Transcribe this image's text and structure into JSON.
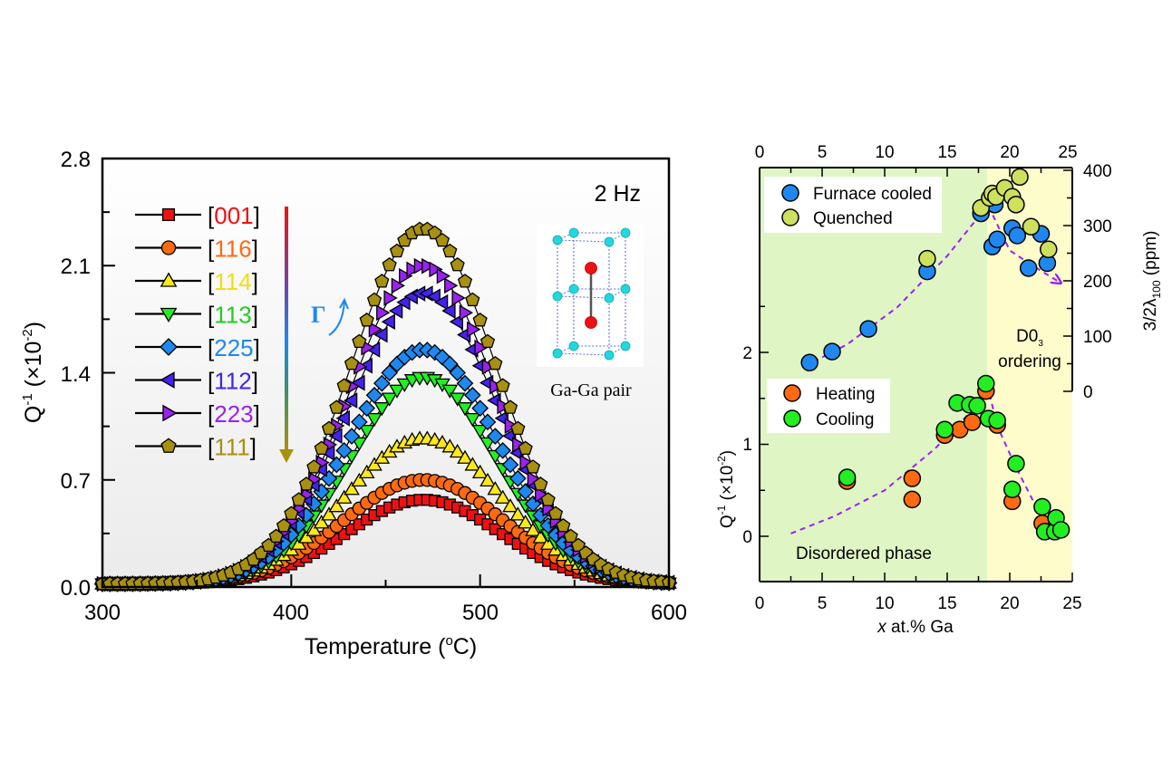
{
  "chart_data": [
    {
      "type": "scatter",
      "title": "",
      "annotation_frequency": "2 Hz",
      "annotation_gamma": "Γ",
      "inset_caption": "Ga-Ga pair",
      "xlabel": "Temperature (°C)",
      "xlabel_parts": {
        "pre": "Temperature (",
        "sup": "o",
        "post": "C)"
      },
      "ylabel_parts": {
        "q": "Q",
        "qsup": "-1",
        "mid": " (×10",
        "sup": "-2",
        "post": ")"
      },
      "xlim": [
        300,
        600
      ],
      "ylim": [
        0.0,
        2.8
      ],
      "x_ticks": [
        "300",
        "400",
        "500",
        "600"
      ],
      "y_ticks": [
        "0.0",
        "0.7",
        "1.4",
        "2.1",
        "2.8"
      ],
      "legend_placement": "top-left",
      "peak_center": 470,
      "series": [
        {
          "name": "[001]",
          "color": "#ee1111",
          "marker": "square",
          "peak": 0.55,
          "width": 58
        },
        {
          "name": "[116]",
          "color": "#ff6a10",
          "marker": "circle",
          "peak": 0.68,
          "width": 60
        },
        {
          "name": "[114]",
          "color": "#ffe81a",
          "marker": "triangle-up",
          "peak": 0.95,
          "width": 58
        },
        {
          "name": "[113]",
          "color": "#22ee22",
          "marker": "triangle-down",
          "peak": 1.35,
          "width": 55
        },
        {
          "name": "[225]",
          "color": "#1e88f0",
          "marker": "diamond",
          "peak": 1.53,
          "width": 56
        },
        {
          "name": "[112]",
          "color": "#4422ee",
          "marker": "triangle-left",
          "peak": 1.9,
          "width": 56
        },
        {
          "name": "[223]",
          "color": "#9922ee",
          "marker": "triangle-right",
          "peak": 2.08,
          "width": 55
        },
        {
          "name": "[111]",
          "color": "#a89010",
          "marker": "pentagon",
          "peak": 2.32,
          "width": 55
        }
      ],
      "legend_label_colors": [
        "#ee1111",
        "#ff6a10",
        "#f2dc10",
        "#22cc22",
        "#1e88f0",
        "#4422ee",
        "#9922ee",
        "#a89010"
      ]
    },
    {
      "type": "scatter",
      "xlabel": "x at.% Ga",
      "xlabel_parts": {
        "italic": "x",
        "rest": " at.% Ga"
      },
      "ylabel_left_parts": {
        "q": "Q",
        "qsup": "-1",
        "mid": " (×10",
        "sup": "-2",
        "post": ")"
      },
      "ylabel_right_parts": {
        "pre": "3/2λ",
        "sub": "100",
        "post": " (ppm)"
      },
      "xlim": [
        0,
        25
      ],
      "ylim_left": [
        -0.5,
        3.5
      ],
      "ylim_right": [
        0,
        400
      ],
      "x_ticks": [
        "0",
        "5",
        "10",
        "15",
        "20",
        "25"
      ],
      "y_ticks_left": [
        "0",
        "1",
        "2"
      ],
      "y_ticks_right": [
        "0",
        "100",
        "200",
        "300",
        "400"
      ],
      "region_boundary_x": 18.2,
      "regions": [
        {
          "label": "Disordered phase",
          "color": "#dff5c4"
        },
        {
          "label_main": "D0",
          "label_sub": "3",
          "label_line2": "ordering",
          "color": "#fffccc"
        }
      ],
      "legend_top": [
        {
          "name": "Furnace cooled",
          "color": "#1e88f0"
        },
        {
          "name": "Quenched",
          "color": "#cde060"
        }
      ],
      "legend_bottom": [
        {
          "name": "Heating",
          "color": "#ff6a10"
        },
        {
          "name": "Cooling",
          "color": "#22ee22"
        }
      ],
      "series_right_axis": [
        {
          "name": "Furnace cooled",
          "points": [
            [
              4.0,
              52
            ],
            [
              5.8,
              72
            ],
            [
              8.7,
              113
            ],
            [
              13.4,
              217
            ],
            [
              17.7,
              322
            ],
            [
              18.6,
              262
            ],
            [
              18.8,
              338
            ],
            [
              19.0,
              275
            ],
            [
              20.2,
              295
            ],
            [
              20.6,
              282
            ],
            [
              21.5,
              223
            ],
            [
              22.5,
              285
            ],
            [
              23.0,
              232
            ]
          ]
        },
        {
          "name": "Quenched",
          "points": [
            [
              13.4,
              240
            ],
            [
              17.7,
              332
            ],
            [
              18.4,
              350
            ],
            [
              18.6,
              358
            ],
            [
              18.9,
              352
            ],
            [
              19.6,
              368
            ],
            [
              20.2,
              352
            ],
            [
              20.5,
              338
            ],
            [
              20.8,
              388
            ],
            [
              21.7,
              298
            ],
            [
              23.1,
              257
            ]
          ]
        }
      ],
      "series_left_axis": [
        {
          "name": "Heating",
          "points": [
            [
              7.0,
              0.6
            ],
            [
              12.2,
              0.63
            ],
            [
              12.2,
              0.4
            ],
            [
              14.8,
              1.1
            ],
            [
              16.0,
              1.16
            ],
            [
              17.0,
              1.24
            ],
            [
              18.1,
              1.58
            ],
            [
              19.0,
              1.21
            ],
            [
              20.2,
              0.38
            ],
            [
              22.6,
              0.14
            ],
            [
              23.5,
              0.07
            ],
            [
              23.8,
              0.07
            ]
          ]
        },
        {
          "name": "Cooling",
          "points": [
            [
              7.0,
              0.64
            ],
            [
              14.8,
              1.16
            ],
            [
              15.8,
              1.45
            ],
            [
              16.8,
              1.43
            ],
            [
              17.4,
              1.42
            ],
            [
              18.1,
              1.66
            ],
            [
              18.3,
              1.28
            ],
            [
              19.0,
              1.26
            ],
            [
              20.2,
              0.51
            ],
            [
              20.5,
              0.79
            ],
            [
              22.6,
              0.32
            ],
            [
              22.8,
              0.05
            ],
            [
              23.6,
              0.05
            ],
            [
              23.7,
              0.2
            ],
            [
              24.1,
              0.07
            ]
          ]
        }
      ],
      "trend_lines": [
        {
          "axis": "left",
          "points": [
            [
              2.5,
              0.03
            ],
            [
              6,
              0.22
            ],
            [
              10,
              0.5
            ],
            [
              14,
              0.95
            ],
            [
              16.5,
              1.3
            ],
            [
              18.2,
              1.65
            ]
          ]
        },
        {
          "axis": "left",
          "points": [
            [
              18.2,
              1.65
            ],
            [
              19.0,
              1.2
            ],
            [
              20.5,
              0.75
            ],
            [
              22.0,
              0.35
            ],
            [
              24.2,
              0.05
            ]
          ]
        },
        {
          "axis": "right",
          "points": [
            [
              3.6,
              45
            ],
            [
              7,
              85
            ],
            [
              11,
              152
            ],
            [
              15,
              245
            ],
            [
              18,
              330
            ],
            [
              20.8,
              395
            ]
          ]
        },
        {
          "axis": "right",
          "points": [
            [
              18.3,
              335
            ],
            [
              20,
              255
            ],
            [
              22,
              225
            ],
            [
              23.8,
              200
            ]
          ]
        }
      ]
    }
  ]
}
